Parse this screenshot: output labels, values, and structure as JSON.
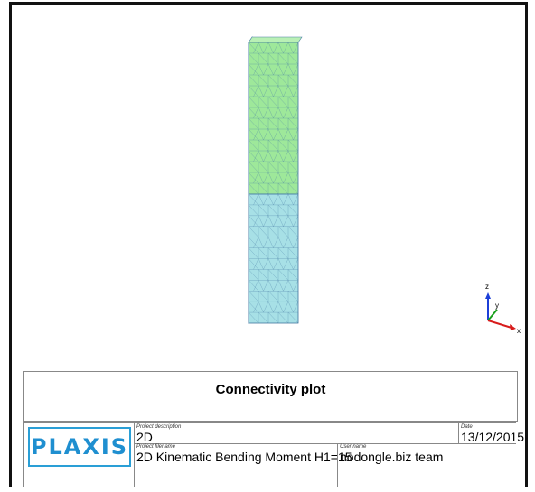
{
  "plot": {
    "caption": "Connectivity plot",
    "axes": {
      "z": "z",
      "y": "y",
      "x": "x"
    },
    "colors": {
      "upper_material": "#9ee89a",
      "lower_material": "#a7e0e6",
      "mesh_lines": "#4a7fa6",
      "axis_z": "#1c3fd8",
      "axis_y": "#18a01c",
      "axis_x": "#d81c1c"
    }
  },
  "title_block": {
    "logo": "PLAXIS",
    "project_description_label": "Project description",
    "project_description": "2D",
    "date_label": "Date",
    "date": "13/12/2015",
    "project_filename_label": "Project filename",
    "project_filename": "2D Kinematic Bending Moment H1=15",
    "user_name_label": "User name",
    "user_name": "nodongle.biz team",
    "brand_color": "#1f8fd0"
  }
}
